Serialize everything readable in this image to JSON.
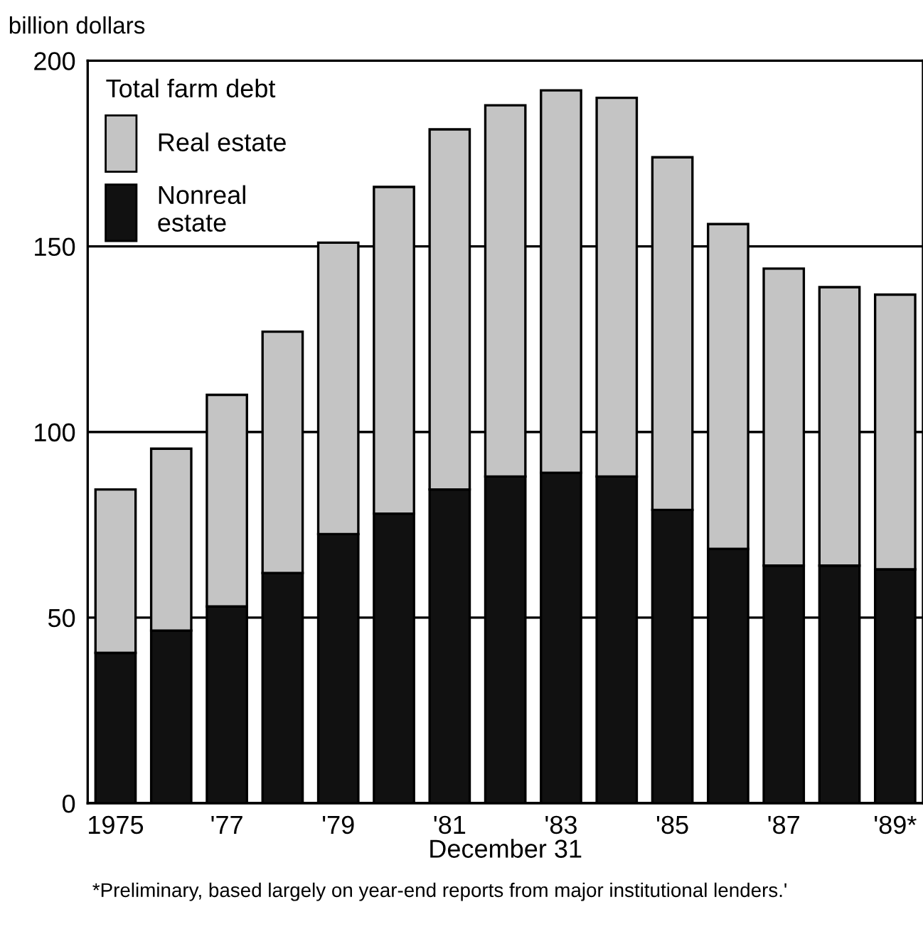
{
  "chart_data": {
    "type": "bar",
    "stacked": true,
    "ylabel": "billion dollars",
    "xlabel": "December 31",
    "legend_title": "Total farm debt",
    "categories": [
      "1975",
      null,
      "'77",
      null,
      "'79",
      null,
      "'81",
      null,
      "'83",
      null,
      "'85",
      null,
      "'87",
      null,
      "'89*"
    ],
    "series": [
      {
        "name": "Nonreal estate",
        "color": "#111111",
        "values": [
          40.5,
          46.5,
          53,
          62,
          72.5,
          78,
          84.5,
          88,
          89,
          88,
          79,
          68.5,
          64,
          64,
          63
        ]
      },
      {
        "name": "Real estate",
        "color": "#c4c4c4",
        "values": [
          44,
          49,
          57,
          65,
          78.5,
          88,
          97,
          100,
          103,
          102,
          95,
          87.5,
          80,
          75,
          74
        ]
      }
    ],
    "ylim": [
      0,
      200
    ],
    "yticks": [
      0,
      50,
      100,
      150,
      200
    ],
    "grid": "y",
    "legend": "top left",
    "annotations": [
      "*Preliminary, based largely on year-end reports from major institutional lenders.'"
    ]
  }
}
